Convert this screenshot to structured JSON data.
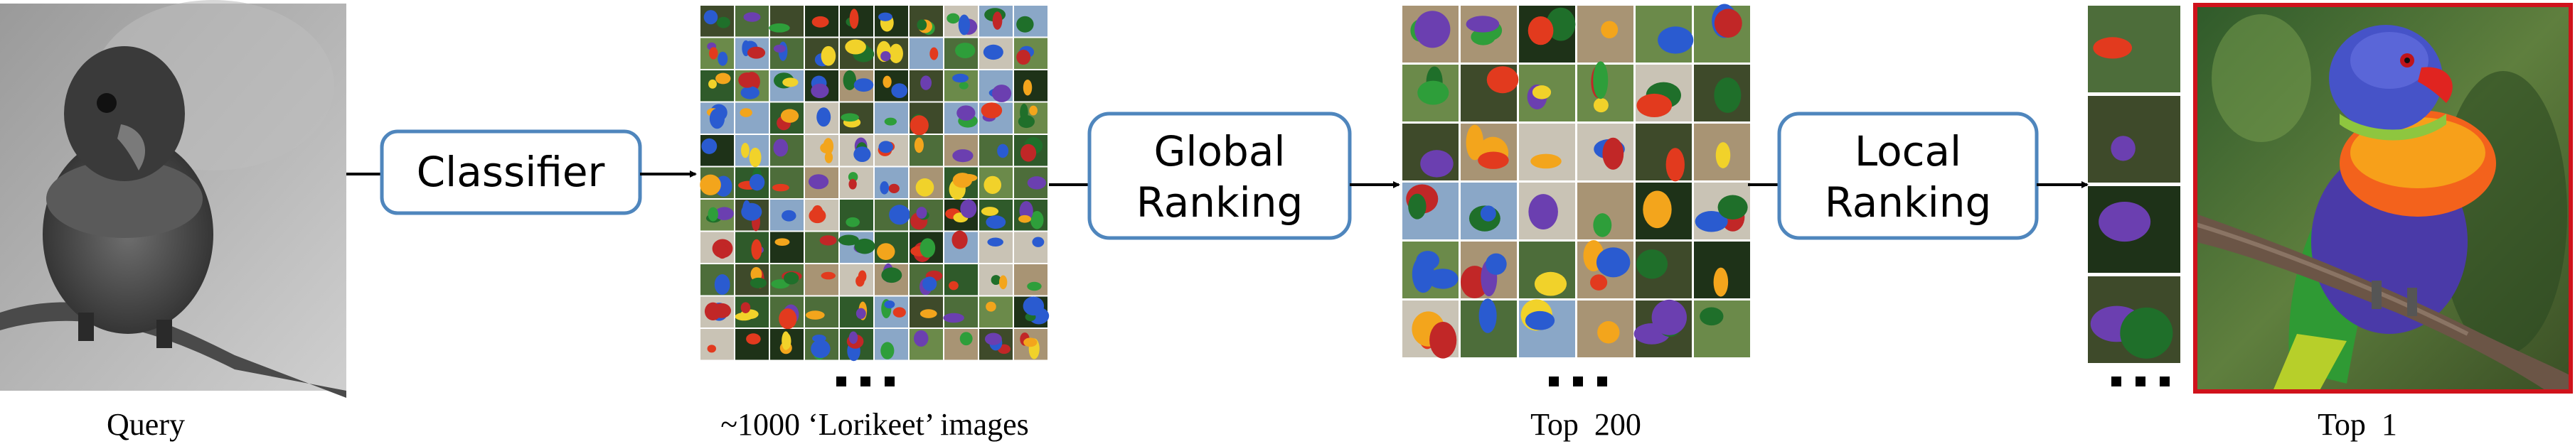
{
  "stages": {
    "query": {
      "caption": "Query"
    },
    "classifier": {
      "label": "Classifier"
    },
    "lorikeet_set": {
      "caption": "~1000 ‘Lorikeet’ images"
    },
    "global_ranking": {
      "label_line1": "Global",
      "label_line2": "Ranking"
    },
    "top200": {
      "caption": "Top  200"
    },
    "local_ranking": {
      "label_line1": "Local",
      "label_line2": "Ranking"
    },
    "top1": {
      "caption": "Top  1"
    }
  },
  "colors": {
    "box_border": "#4f86bd",
    "arrow": "#000000",
    "result_border": "#d0121b",
    "thumb_bird_palette": [
      "#2a5bd0",
      "#e23a1e",
      "#f3a51c",
      "#2e9e3a",
      "#6b3fb0",
      "#f1d22a",
      "#1f6f2a",
      "#c12727"
    ],
    "thumb_bg_palette": [
      "#2f5a2a",
      "#6b8a4a",
      "#8aa7c7",
      "#3e4a2a",
      "#a89474",
      "#4d6d3a",
      "#c9c3b5",
      "#1e3218"
    ]
  },
  "icons": {
    "query_image": "grayscale-lorikeet-photo",
    "result_image": "rainbow-lorikeet-photo",
    "ellipsis": "ellipsis-dots"
  }
}
